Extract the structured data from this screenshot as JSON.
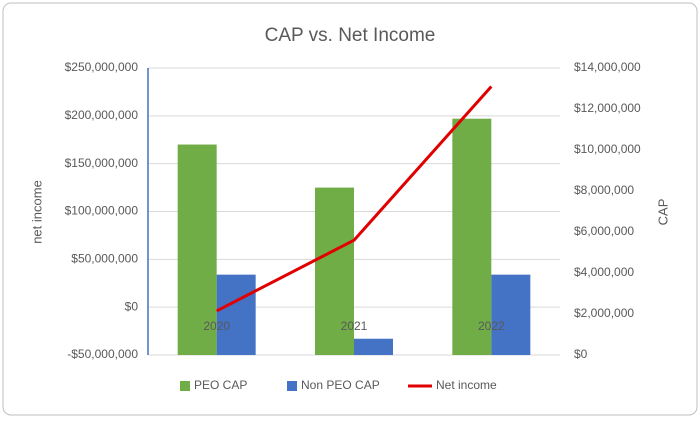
{
  "chart_data": {
    "type": "bar_line",
    "title": "CAP vs. Net Income",
    "y_label": "net income",
    "y2_label": "CAP",
    "categories": [
      "2020",
      "2021",
      "2022"
    ],
    "series": [
      {
        "name": "PEO CAP",
        "type": "bar",
        "color": "#70ad47",
        "values": [
          170000000,
          125000000,
          197000000
        ]
      },
      {
        "name": "Non PEO CAP",
        "type": "bar",
        "color": "#4472c4",
        "values": [
          34000000,
          -33000000,
          34000000
        ]
      },
      {
        "name": "Net income",
        "type": "line",
        "axis": "y2",
        "color": "#e00000",
        "values": [
          2150000,
          5600000,
          13100000
        ]
      }
    ],
    "ylim": [
      -50000000,
      250000000
    ],
    "yticks": [
      {
        "value": -50000000,
        "label": "-$50,000,000"
      },
      {
        "value": 0,
        "label": "$0"
      },
      {
        "value": 50000000,
        "label": "$50,000,000"
      },
      {
        "value": 100000000,
        "label": "$100,000,000"
      },
      {
        "value": 150000000,
        "label": "$150,000,000"
      },
      {
        "value": 200000000,
        "label": "$200,000,000"
      },
      {
        "value": 250000000,
        "label": "$250,000,000"
      }
    ],
    "y2lim": [
      0,
      14000000
    ],
    "y2ticks": [
      {
        "value": 0,
        "label": "$0"
      },
      {
        "value": 2000000,
        "label": "$2,000,000"
      },
      {
        "value": 4000000,
        "label": "$4,000,000"
      },
      {
        "value": 6000000,
        "label": "$6,000,000"
      },
      {
        "value": 8000000,
        "label": "$8,000,000"
      },
      {
        "value": 10000000,
        "label": "$10,000,000"
      },
      {
        "value": 12000000,
        "label": "$12,000,000"
      },
      {
        "value": 14000000,
        "label": "$14,000,000"
      }
    ],
    "grid": true,
    "legend": "bottom"
  }
}
